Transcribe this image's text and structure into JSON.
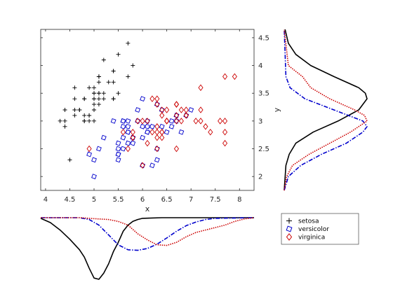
{
  "chart_data": {
    "type": "scatter",
    "title": "",
    "xlabel": "x",
    "ylabel": "y",
    "xlim": [
      3.9,
      8.3
    ],
    "ylim": [
      1.75,
      4.65
    ],
    "xticks": [
      "4",
      "4.5",
      "5",
      "5.5",
      "6",
      "6.5",
      "7",
      "7.5",
      "8"
    ],
    "yticks": [
      "2",
      "2.5",
      "3",
      "3.5",
      "4",
      "4.5"
    ],
    "grid": false,
    "legend_position": "bottom-right",
    "series": [
      {
        "name": "setosa",
        "marker": "plus",
        "color": "#000000",
        "points": [
          [
            5.1,
            3.5
          ],
          [
            4.9,
            3.0
          ],
          [
            4.7,
            3.2
          ],
          [
            4.6,
            3.1
          ],
          [
            5.0,
            3.6
          ],
          [
            5.4,
            3.9
          ],
          [
            4.6,
            3.4
          ],
          [
            5.0,
            3.4
          ],
          [
            4.4,
            2.9
          ],
          [
            4.9,
            3.1
          ],
          [
            5.4,
            3.7
          ],
          [
            4.8,
            3.4
          ],
          [
            4.8,
            3.0
          ],
          [
            4.3,
            3.0
          ],
          [
            5.8,
            4.0
          ],
          [
            5.7,
            4.4
          ],
          [
            5.4,
            3.9
          ],
          [
            5.1,
            3.5
          ],
          [
            5.7,
            3.8
          ],
          [
            5.1,
            3.8
          ],
          [
            5.4,
            3.4
          ],
          [
            5.1,
            3.7
          ],
          [
            4.6,
            3.6
          ],
          [
            5.1,
            3.3
          ],
          [
            4.8,
            3.4
          ],
          [
            5.0,
            3.0
          ],
          [
            5.0,
            3.4
          ],
          [
            5.2,
            3.5
          ],
          [
            5.2,
            3.4
          ],
          [
            4.7,
            3.2
          ],
          [
            4.8,
            3.1
          ],
          [
            5.4,
            3.4
          ],
          [
            5.2,
            4.1
          ],
          [
            5.5,
            4.2
          ],
          [
            4.9,
            3.1
          ],
          [
            5.0,
            3.2
          ],
          [
            5.5,
            3.5
          ],
          [
            4.9,
            3.6
          ],
          [
            4.4,
            3.0
          ],
          [
            5.1,
            3.4
          ],
          [
            5.0,
            3.5
          ],
          [
            4.5,
            2.3
          ],
          [
            4.4,
            3.2
          ],
          [
            5.0,
            3.5
          ],
          [
            5.1,
            3.8
          ],
          [
            4.8,
            3.0
          ],
          [
            5.1,
            3.8
          ],
          [
            4.6,
            3.2
          ],
          [
            5.3,
            3.7
          ],
          [
            5.0,
            3.3
          ]
        ]
      },
      {
        "name": "versicolor",
        "marker": "circle",
        "color": "#0000cc",
        "points": [
          [
            7.0,
            3.2
          ],
          [
            6.4,
            3.2
          ],
          [
            6.9,
            3.1
          ],
          [
            5.5,
            2.3
          ],
          [
            6.5,
            2.8
          ],
          [
            5.7,
            2.8
          ],
          [
            6.3,
            3.3
          ],
          [
            4.9,
            2.4
          ],
          [
            6.6,
            2.9
          ],
          [
            5.2,
            2.7
          ],
          [
            5.0,
            2.0
          ],
          [
            5.9,
            3.0
          ],
          [
            6.0,
            2.2
          ],
          [
            6.1,
            2.9
          ],
          [
            5.6,
            2.9
          ],
          [
            6.7,
            3.1
          ],
          [
            5.6,
            3.0
          ],
          [
            5.8,
            2.7
          ],
          [
            6.2,
            2.2
          ],
          [
            5.6,
            2.5
          ],
          [
            5.9,
            3.2
          ],
          [
            6.1,
            2.8
          ],
          [
            6.3,
            2.5
          ],
          [
            6.1,
            2.8
          ],
          [
            6.4,
            2.9
          ],
          [
            6.6,
            3.0
          ],
          [
            6.8,
            2.8
          ],
          [
            6.7,
            3.0
          ],
          [
            6.0,
            2.9
          ],
          [
            5.7,
            2.6
          ],
          [
            5.5,
            2.4
          ],
          [
            5.5,
            2.4
          ],
          [
            5.8,
            2.7
          ],
          [
            6.0,
            2.7
          ],
          [
            5.4,
            3.0
          ],
          [
            6.0,
            3.4
          ],
          [
            6.7,
            3.1
          ],
          [
            6.3,
            2.3
          ],
          [
            5.6,
            3.0
          ],
          [
            5.5,
            2.5
          ],
          [
            5.5,
            2.6
          ],
          [
            6.1,
            3.0
          ],
          [
            5.8,
            2.6
          ],
          [
            5.0,
            2.3
          ],
          [
            5.6,
            2.7
          ],
          [
            5.7,
            3.0
          ],
          [
            5.7,
            2.9
          ],
          [
            6.2,
            2.9
          ],
          [
            5.1,
            2.5
          ],
          [
            5.7,
            2.8
          ]
        ]
      },
      {
        "name": "virginica",
        "marker": "diamond",
        "color": "#cc0000",
        "points": [
          [
            6.3,
            3.3
          ],
          [
            5.8,
            2.7
          ],
          [
            7.1,
            3.0
          ],
          [
            6.3,
            2.9
          ],
          [
            6.5,
            3.0
          ],
          [
            7.6,
            3.0
          ],
          [
            4.9,
            2.5
          ],
          [
            7.3,
            2.9
          ],
          [
            6.7,
            2.5
          ],
          [
            7.2,
            3.6
          ],
          [
            6.5,
            3.2
          ],
          [
            6.4,
            2.7
          ],
          [
            6.8,
            3.0
          ],
          [
            5.7,
            2.5
          ],
          [
            5.8,
            2.8
          ],
          [
            6.4,
            3.2
          ],
          [
            6.5,
            3.0
          ],
          [
            7.7,
            3.8
          ],
          [
            7.7,
            2.6
          ],
          [
            6.0,
            2.2
          ],
          [
            6.9,
            3.2
          ],
          [
            5.6,
            2.8
          ],
          [
            7.7,
            2.8
          ],
          [
            6.3,
            2.7
          ],
          [
            6.7,
            3.3
          ],
          [
            7.2,
            3.2
          ],
          [
            6.2,
            2.8
          ],
          [
            6.1,
            3.0
          ],
          [
            6.4,
            2.8
          ],
          [
            7.2,
            3.0
          ],
          [
            7.4,
            2.8
          ],
          [
            7.9,
            3.8
          ],
          [
            6.4,
            2.8
          ],
          [
            6.3,
            2.8
          ],
          [
            6.1,
            2.6
          ],
          [
            7.7,
            3.0
          ],
          [
            6.3,
            3.4
          ],
          [
            6.4,
            3.1
          ],
          [
            6.0,
            3.0
          ],
          [
            6.9,
            3.1
          ],
          [
            6.7,
            3.1
          ],
          [
            6.9,
            3.1
          ],
          [
            5.8,
            2.7
          ],
          [
            6.8,
            3.2
          ],
          [
            6.7,
            3.3
          ],
          [
            6.7,
            3.0
          ],
          [
            6.3,
            2.5
          ],
          [
            6.5,
            3.0
          ],
          [
            6.2,
            3.4
          ],
          [
            5.9,
            3.0
          ]
        ]
      }
    ],
    "marginal_x": {
      "type": "area",
      "xlim": [
        3.9,
        8.3
      ],
      "series": [
        {
          "name": "setosa",
          "line": "solid",
          "color": "#000000",
          "x": [
            3.9,
            4.1,
            4.3,
            4.5,
            4.7,
            4.8,
            4.9,
            5.0,
            5.1,
            5.2,
            5.3,
            5.4,
            5.5,
            5.6,
            5.7,
            5.8,
            5.9,
            6.0,
            6.2,
            6.4,
            8.3
          ],
          "density": [
            0.01,
            0.08,
            0.2,
            0.35,
            0.52,
            0.64,
            0.82,
            0.98,
            1.0,
            0.9,
            0.75,
            0.55,
            0.4,
            0.22,
            0.12,
            0.06,
            0.03,
            0.01,
            0.005,
            0.0,
            0.0
          ]
        },
        {
          "name": "versicolor",
          "line": "dashdot",
          "color": "#0000cc",
          "x": [
            3.9,
            4.7,
            4.9,
            5.1,
            5.3,
            5.5,
            5.7,
            5.9,
            6.1,
            6.3,
            6.5,
            6.7,
            6.9,
            7.1,
            7.3,
            7.5,
            8.3
          ],
          "density": [
            0.0,
            0.0,
            0.03,
            0.12,
            0.28,
            0.44,
            0.52,
            0.53,
            0.5,
            0.43,
            0.33,
            0.22,
            0.13,
            0.07,
            0.03,
            0.01,
            0.0
          ]
        },
        {
          "name": "virginica",
          "line": "dotted",
          "color": "#cc0000",
          "x": [
            3.9,
            4.7,
            4.9,
            5.1,
            5.3,
            5.5,
            5.7,
            5.9,
            6.1,
            6.3,
            6.5,
            6.7,
            6.9,
            7.1,
            7.3,
            7.5,
            7.7,
            7.9,
            8.1,
            8.3
          ],
          "density": [
            0.0,
            0.0,
            0.01,
            0.02,
            0.03,
            0.06,
            0.12,
            0.26,
            0.36,
            0.44,
            0.45,
            0.4,
            0.31,
            0.24,
            0.2,
            0.16,
            0.12,
            0.06,
            0.02,
            0.0
          ]
        }
      ]
    },
    "marginal_y": {
      "type": "area",
      "ylim": [
        1.75,
        4.65
      ],
      "series": [
        {
          "name": "setosa",
          "line": "solid",
          "color": "#000000",
          "y": [
            1.75,
            2.2,
            2.4,
            2.6,
            2.8,
            3.0,
            3.2,
            3.4,
            3.5,
            3.6,
            3.8,
            4.0,
            4.2,
            4.4,
            4.65
          ],
          "density": [
            0.0,
            0.02,
            0.06,
            0.14,
            0.35,
            0.65,
            0.9,
            1.0,
            0.98,
            0.9,
            0.6,
            0.32,
            0.14,
            0.05,
            0.01
          ]
        },
        {
          "name": "versicolor",
          "line": "dashdot",
          "color": "#0000cc",
          "y": [
            1.75,
            2.0,
            2.2,
            2.4,
            2.6,
            2.8,
            2.9,
            3.0,
            3.2,
            3.4,
            3.6,
            3.8,
            4.65
          ],
          "density": [
            0.0,
            0.05,
            0.2,
            0.45,
            0.75,
            0.95,
            1.0,
            0.95,
            0.6,
            0.25,
            0.07,
            0.02,
            0.0
          ]
        },
        {
          "name": "virginica",
          "line": "dotted",
          "color": "#cc0000",
          "y": [
            1.75,
            2.0,
            2.2,
            2.4,
            2.6,
            2.8,
            3.0,
            3.1,
            3.2,
            3.4,
            3.6,
            3.8,
            4.0,
            4.65
          ],
          "density": [
            0.0,
            0.03,
            0.1,
            0.3,
            0.55,
            0.8,
            1.0,
            0.97,
            0.85,
            0.55,
            0.32,
            0.22,
            0.05,
            0.0
          ]
        }
      ]
    },
    "legend": [
      "setosa",
      "versicolor",
      "virginica"
    ]
  }
}
